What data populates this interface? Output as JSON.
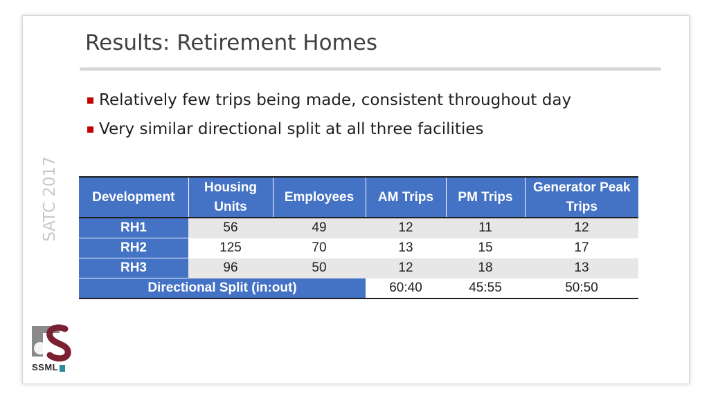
{
  "slide": {
    "title": "Results: Retirement Homes",
    "side_label": "SATC 2017",
    "bullets": [
      "Relatively few trips being made, consistent throughout day",
      "Very similar directional split at all three facilities"
    ]
  },
  "table": {
    "headers": [
      "Development",
      "Housing Units",
      "Employees",
      "AM Trips",
      "PM Trips",
      "Generator Peak Trips"
    ],
    "rows": [
      [
        "RH1",
        "56",
        "49",
        "12",
        "11",
        "12"
      ],
      [
        "RH2",
        "125",
        "70",
        "13",
        "15",
        "17"
      ],
      [
        "RH3",
        "96",
        "50",
        "12",
        "18",
        "13"
      ]
    ],
    "split": {
      "label": "Directional Split (in:out)",
      "am": "60:40",
      "pm": "45:55",
      "peak": "50:50"
    }
  },
  "logo": {
    "text": "SSML",
    "icon": "ssml-logo-icon",
    "colors": {
      "maroon": "#7a2030",
      "gray": "#8a8a8a",
      "teal": "#2a8a9a"
    }
  },
  "colors": {
    "header_blue": "#4472c4",
    "bullet_red": "#c00000",
    "shade_gray": "#e7e7e7"
  }
}
